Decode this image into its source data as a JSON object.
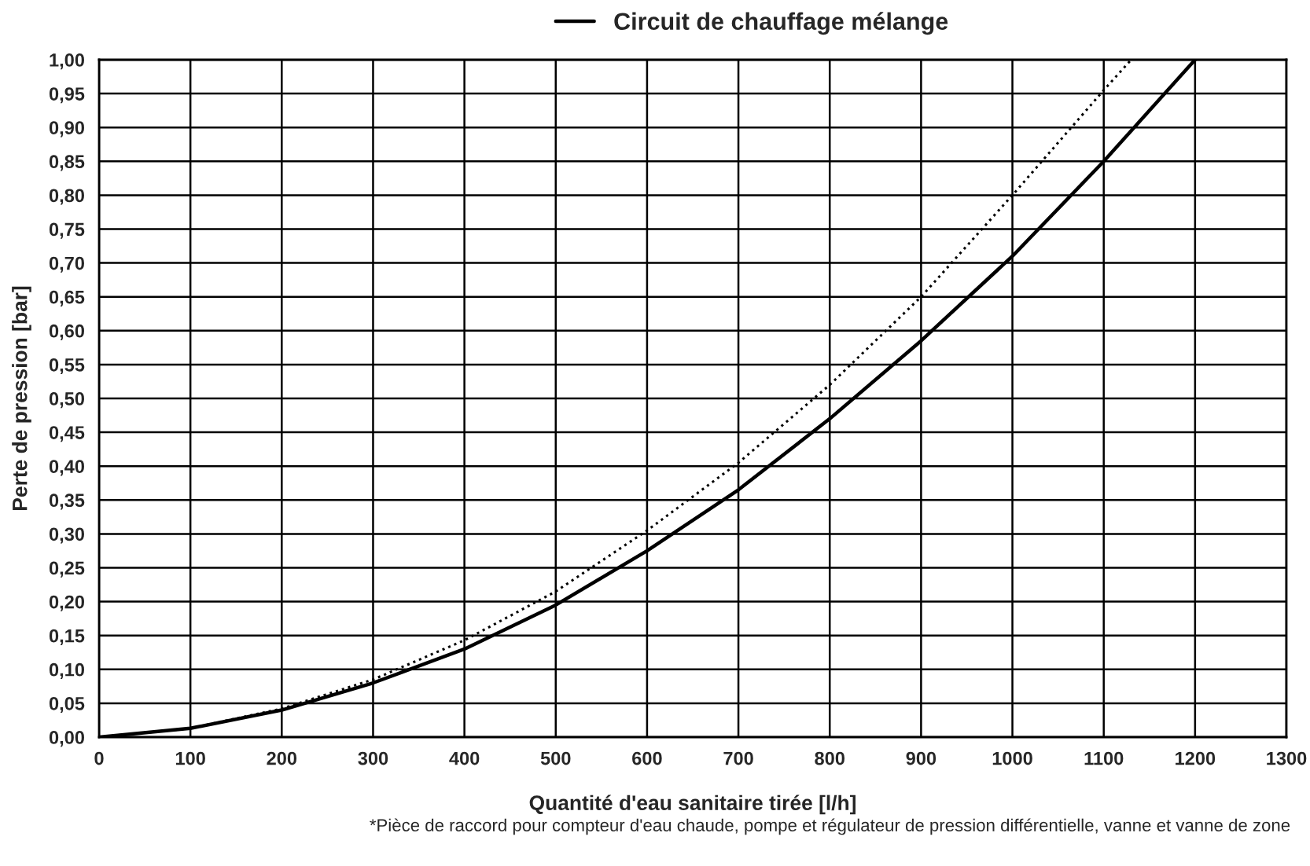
{
  "chart_data": {
    "type": "line",
    "xlabel": "Quantité d'eau sanitaire tirée [l/h]",
    "ylabel": "Perte de pression [bar]",
    "xlim": [
      0,
      1300
    ],
    "xticks": [
      0,
      100,
      200,
      300,
      400,
      500,
      600,
      700,
      800,
      900,
      1000,
      1100,
      1200,
      1300
    ],
    "ylim": [
      0,
      1
    ],
    "yticks": [
      {
        "value": 0,
        "label": "0,00"
      },
      {
        "value": 0.05,
        "label": "0,05"
      },
      {
        "value": 0.1,
        "label": "0,10"
      },
      {
        "value": 0.15,
        "label": "0,15"
      },
      {
        "value": 0.2,
        "label": "0,20"
      },
      {
        "value": 0.25,
        "label": "0,25"
      },
      {
        "value": 0.3,
        "label": "0,30"
      },
      {
        "value": 0.35,
        "label": "0,35"
      },
      {
        "value": 0.4,
        "label": "0,40"
      },
      {
        "value": 0.45,
        "label": "0,45"
      },
      {
        "value": 0.5,
        "label": "0,50"
      },
      {
        "value": 0.55,
        "label": "0,55"
      },
      {
        "value": 0.6,
        "label": "0,60"
      },
      {
        "value": 0.65,
        "label": "0,65"
      },
      {
        "value": 0.7,
        "label": "0,70"
      },
      {
        "value": 0.75,
        "label": "0,75"
      },
      {
        "value": 0.8,
        "label": "0,80"
      },
      {
        "value": 0.85,
        "label": "0,85"
      },
      {
        "value": 0.9,
        "label": "0,90"
      },
      {
        "value": 0.95,
        "label": "0,95"
      },
      {
        "value": 1,
        "label": "1,00"
      }
    ],
    "grid": true,
    "legend": "top",
    "marker": "none",
    "series": [
      {
        "name": "Circuit de chauffage mélange",
        "color": "#000000",
        "line_style": "solid",
        "x": [
          0,
          100,
          200,
          300,
          400,
          500,
          600,
          700,
          800,
          900,
          1000,
          1100,
          1200
        ],
        "values": [
          0,
          0.013,
          0.04,
          0.08,
          0.13,
          0.195,
          0.275,
          0.365,
          0.47,
          0.585,
          0.71,
          0.85,
          1.0
        ]
      },
      {
        "color": "#000000",
        "line_style": "dotted",
        "x": [
          0,
          100,
          200,
          300,
          400,
          500,
          600,
          700,
          800,
          900,
          1000,
          1100,
          1130
        ],
        "values": [
          0,
          0.013,
          0.042,
          0.085,
          0.143,
          0.215,
          0.305,
          0.405,
          0.52,
          0.65,
          0.8,
          0.955,
          1.0
        ]
      }
    ],
    "annotations": [
      "*Pièce de raccord pour compteur d'eau chaude, pompe et régulateur de pression différentielle, vanne et vanne de zone"
    ]
  }
}
